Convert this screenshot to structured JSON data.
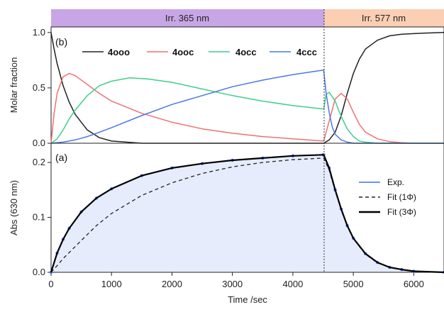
{
  "chart_data": [
    {
      "panel_label": "(b)",
      "type": "line",
      "ylabel": "Molar fraction",
      "xlim": [
        0,
        6500
      ],
      "ylim": [
        0,
        1.05
      ],
      "yticks": [
        "0.0",
        "0.5",
        "1.0"
      ],
      "header_bands": [
        {
          "label": "Irr. 365 nm",
          "from": 0,
          "to": 4500,
          "color": "#c8a6e6"
        },
        {
          "label": "Irr. 577 nm",
          "from": 4500,
          "to": 6500,
          "color": "#fbcfb4"
        }
      ],
      "legend_position": "top",
      "series": [
        {
          "name": "4ooo",
          "color": "#222222",
          "x": [
            0,
            50,
            100,
            200,
            300,
            400,
            600,
            800,
            1000,
            1500,
            4500,
            4510,
            4600,
            4700,
            4800,
            4900,
            5000,
            5100,
            5200,
            5400,
            5600,
            5800,
            6000,
            6200,
            6500
          ],
          "y": [
            1.0,
            0.85,
            0.72,
            0.52,
            0.37,
            0.26,
            0.12,
            0.05,
            0.02,
            0.0,
            0.0,
            0.0,
            0.03,
            0.1,
            0.25,
            0.45,
            0.63,
            0.76,
            0.85,
            0.93,
            0.97,
            0.985,
            0.99,
            0.995,
            1.0
          ]
        },
        {
          "name": "4ooc",
          "color": "#f07070",
          "x": [
            0,
            50,
            100,
            200,
            300,
            400,
            600,
            800,
            1000,
            1500,
            2000,
            2500,
            3000,
            3500,
            4000,
            4500,
            4510,
            4600,
            4700,
            4800,
            4900,
            5000,
            5100,
            5200,
            5400,
            5600,
            5800,
            6000,
            6500
          ],
          "y": [
            0.0,
            0.27,
            0.45,
            0.6,
            0.63,
            0.61,
            0.53,
            0.45,
            0.38,
            0.27,
            0.19,
            0.13,
            0.09,
            0.06,
            0.04,
            0.02,
            0.02,
            0.2,
            0.4,
            0.45,
            0.4,
            0.28,
            0.17,
            0.1,
            0.04,
            0.015,
            0.005,
            0.0,
            0.0
          ]
        },
        {
          "name": "4occ",
          "color": "#3ecf8a",
          "x": [
            0,
            100,
            200,
            300,
            400,
            600,
            800,
            1000,
            1300,
            1600,
            2000,
            2500,
            3000,
            3500,
            4000,
            4500,
            4510,
            4550,
            4600,
            4700,
            4800,
            4900,
            5000,
            5100,
            5200,
            5400,
            6500
          ],
          "y": [
            0.0,
            0.04,
            0.12,
            0.22,
            0.3,
            0.43,
            0.52,
            0.56,
            0.59,
            0.58,
            0.55,
            0.49,
            0.43,
            0.38,
            0.34,
            0.31,
            0.31,
            0.44,
            0.46,
            0.38,
            0.24,
            0.13,
            0.06,
            0.02,
            0.01,
            0.0,
            0.0
          ]
        },
        {
          "name": "4ccc",
          "color": "#4a78e6",
          "x": [
            0,
            200,
            400,
            600,
            800,
            1000,
            1500,
            2000,
            2500,
            3000,
            3500,
            4000,
            4500,
            4510,
            4550,
            4600,
            4650,
            4700,
            4800,
            4900,
            5000,
            6500
          ],
          "y": [
            0.0,
            0.01,
            0.03,
            0.06,
            0.1,
            0.14,
            0.25,
            0.35,
            0.43,
            0.51,
            0.57,
            0.62,
            0.66,
            0.66,
            0.45,
            0.28,
            0.15,
            0.08,
            0.03,
            0.01,
            0.0,
            0.0
          ]
        }
      ]
    },
    {
      "panel_label": "(a)",
      "type": "line",
      "xlabel": "Time /sec",
      "ylabel": "Abs (630 nm)",
      "xlim": [
        0,
        6500
      ],
      "ylim": [
        0,
        0.235
      ],
      "xticks": [
        "0",
        "1000",
        "2000",
        "3000",
        "4000",
        "5000",
        "6000"
      ],
      "yticks": [
        "0.0",
        "0.1",
        "0.2"
      ],
      "legend_position": "right",
      "series": [
        {
          "name": "Exp.",
          "color": "#3f6fff",
          "style": "points",
          "x": [
            0,
            100,
            200,
            300,
            500,
            750,
            1000,
            1500,
            2000,
            2500,
            3000,
            3500,
            4000,
            4500,
            4510,
            4600,
            4700,
            4800,
            4900,
            5000,
            5200,
            5400,
            5600,
            5800,
            6000,
            6500
          ],
          "y": [
            0.0,
            0.035,
            0.06,
            0.08,
            0.11,
            0.135,
            0.152,
            0.176,
            0.19,
            0.198,
            0.204,
            0.208,
            0.212,
            0.214,
            0.214,
            0.19,
            0.15,
            0.115,
            0.085,
            0.062,
            0.034,
            0.018,
            0.009,
            0.005,
            0.002,
            0.0
          ]
        },
        {
          "name": "Fit (1Φ)",
          "color": "#222222",
          "style": "dashed",
          "x": [
            0,
            100,
            200,
            300,
            500,
            750,
            1000,
            1500,
            2000,
            2500,
            3000,
            3500,
            4000,
            4500,
            4510,
            4600,
            4700,
            4800,
            4900,
            5000,
            5200,
            5400,
            5600,
            5800,
            6000,
            6500
          ],
          "y": [
            0.0,
            0.012,
            0.025,
            0.036,
            0.058,
            0.085,
            0.107,
            0.14,
            0.163,
            0.18,
            0.192,
            0.2,
            0.205,
            0.208,
            0.208,
            0.186,
            0.148,
            0.113,
            0.084,
            0.061,
            0.033,
            0.017,
            0.009,
            0.005,
            0.002,
            0.0
          ]
        },
        {
          "name": "Fit (3Φ)",
          "color": "#000000",
          "style": "solid",
          "x": [
            0,
            100,
            200,
            300,
            500,
            750,
            1000,
            1500,
            2000,
            2500,
            3000,
            3500,
            4000,
            4500,
            4510,
            4600,
            4700,
            4800,
            4900,
            5000,
            5200,
            5400,
            5600,
            5800,
            6000,
            6500
          ],
          "y": [
            0.0,
            0.035,
            0.06,
            0.08,
            0.11,
            0.135,
            0.152,
            0.176,
            0.19,
            0.198,
            0.204,
            0.208,
            0.212,
            0.214,
            0.214,
            0.19,
            0.15,
            0.115,
            0.085,
            0.062,
            0.034,
            0.018,
            0.009,
            0.005,
            0.002,
            0.0
          ]
        }
      ]
    }
  ]
}
